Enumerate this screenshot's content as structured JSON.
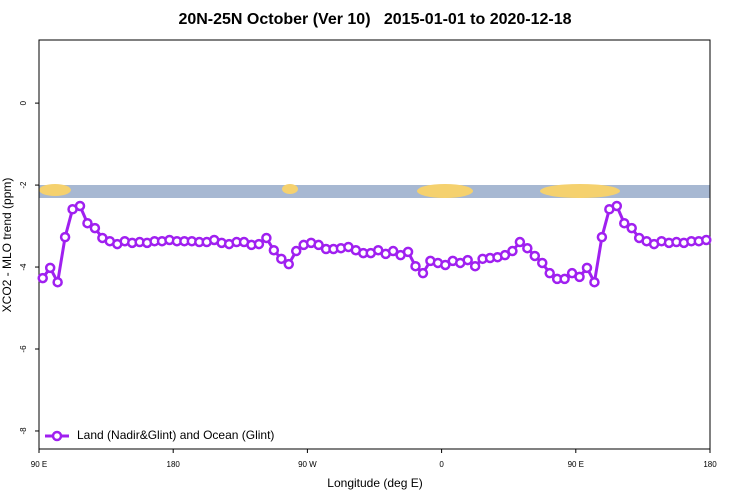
{
  "chart_data": {
    "type": "line",
    "title": "20N-25N October (Ver 10)   2015-01-01 to 2020-12-18",
    "x_label": "Longitude (deg E)",
    "y_label": "XCO2 - MLO trend (ppm)",
    "xlim": [
      90,
      540
    ],
    "ylim": [
      -8.44,
      1.54
    ],
    "xticks": [
      {
        "value": 90,
        "label": "90 E"
      },
      180,
      {
        "value": 270,
        "label": "90 W"
      },
      {
        "value": 360,
        "label": "0"
      },
      {
        "value": 450,
        "label": "90 E"
      },
      {
        "value": 540,
        "label": "180"
      }
    ],
    "yticks": [
      0,
      -2,
      -4,
      -6,
      -8
    ],
    "legend": "bottom-left",
    "x": [
      92.5,
      97.5,
      102.5,
      107.5,
      112.5,
      117.5,
      122.5,
      127.5,
      132.5,
      137.5,
      142.5,
      147.5,
      152.5,
      157.5,
      162.5,
      167.5,
      172.5,
      177.5,
      182.5,
      187.5,
      192.5,
      197.5,
      202.5,
      207.5,
      212.5,
      217.5,
      222.5,
      227.5,
      232.5,
      237.5,
      242.5,
      247.5,
      252.5,
      257.5,
      262.5,
      267.5,
      272.5,
      277.5,
      282.5,
      287.5,
      292.5,
      297.5,
      302.5,
      307.5,
      312.5,
      317.5,
      322.5,
      327.5,
      332.5,
      337.5,
      342.5,
      347.5,
      352.5,
      357.5,
      362.5,
      367.5,
      372.5,
      377.5,
      382.5,
      387.5,
      392.5,
      397.5,
      402.5,
      407.5,
      412.5,
      417.5,
      422.5,
      427.5,
      432.5,
      437.5,
      442.5,
      447.5,
      452.5,
      457.5,
      462.5,
      467.5,
      472.5,
      477.5,
      482.5,
      487.5,
      492.5,
      497.5,
      502.5,
      507.5,
      512.5,
      517.5,
      522.5,
      527.5,
      532.5,
      537.5
    ],
    "series": [
      {
        "name": "Land (Nadir&Glint) and Ocean (Glint)",
        "color": "#a020f0",
        "values": [
          -4.27,
          -4.02,
          -4.37,
          -3.27,
          -2.59,
          -2.51,
          -2.93,
          -3.05,
          -3.29,
          -3.37,
          -3.44,
          -3.37,
          -3.41,
          -3.39,
          -3.41,
          -3.37,
          -3.37,
          -3.34,
          -3.37,
          -3.37,
          -3.37,
          -3.39,
          -3.39,
          -3.34,
          -3.41,
          -3.44,
          -3.39,
          -3.39,
          -3.46,
          -3.44,
          -3.29,
          -3.59,
          -3.8,
          -3.93,
          -3.61,
          -3.46,
          -3.41,
          -3.46,
          -3.56,
          -3.56,
          -3.54,
          -3.51,
          -3.59,
          -3.66,
          -3.66,
          -3.59,
          -3.68,
          -3.61,
          -3.71,
          -3.63,
          -3.98,
          -4.15,
          -3.85,
          -3.9,
          -3.95,
          -3.85,
          -3.9,
          -3.83,
          -3.98,
          -3.8,
          -3.78,
          -3.76,
          -3.71,
          -3.61,
          -3.39,
          -3.54,
          -3.73,
          -3.9,
          -4.15,
          -4.29,
          -4.29,
          -4.15,
          -4.24,
          -4.02,
          -4.37,
          -3.27,
          -2.59,
          -2.51,
          -2.93,
          -3.05,
          -3.29,
          -3.37,
          -3.44,
          -3.37,
          -3.41,
          -3.39,
          -3.41,
          -3.37,
          -3.37,
          -3.34
        ]
      }
    ]
  }
}
